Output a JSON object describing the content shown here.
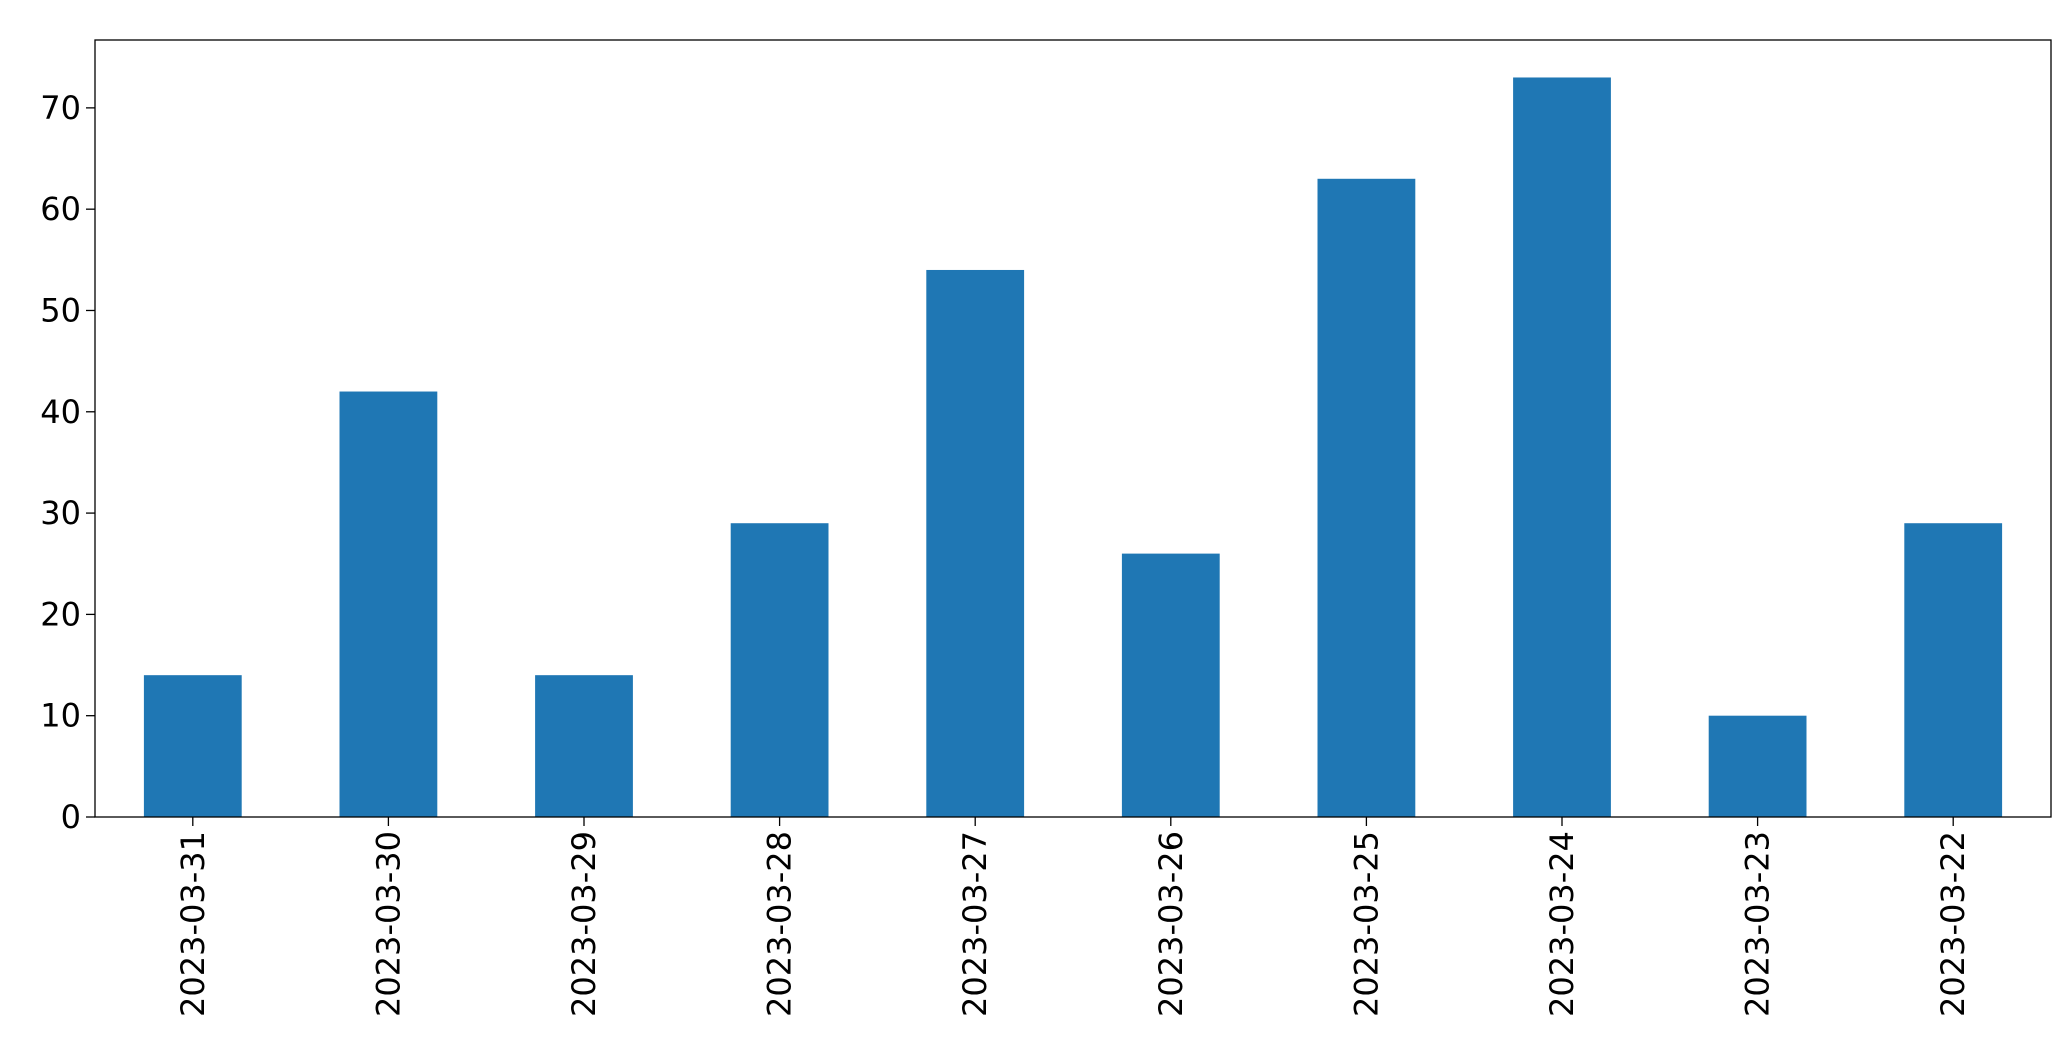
{
  "chart_data": {
    "type": "bar",
    "categories": [
      "2023-03-31",
      "2023-03-30",
      "2023-03-29",
      "2023-03-28",
      "2023-03-27",
      "2023-03-26",
      "2023-03-25",
      "2023-03-24",
      "2023-03-23",
      "2023-03-22"
    ],
    "values": [
      14,
      42,
      14,
      29,
      54,
      26,
      63,
      73,
      10,
      29
    ],
    "color": "#1f77b4",
    "ylim": [
      0,
      76.7
    ],
    "yticks": [
      0,
      10,
      20,
      30,
      40,
      50,
      60,
      70
    ],
    "grid": false
  }
}
